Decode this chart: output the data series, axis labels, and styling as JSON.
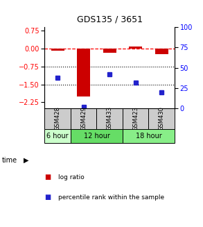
{
  "title": "GDS135 / 3651",
  "samples": [
    "GSM428",
    "GSM429",
    "GSM433",
    "GSM423",
    "GSM430"
  ],
  "log_ratio": [
    -0.07,
    -2.0,
    -0.18,
    0.1,
    -0.22
  ],
  "percentile_rank": [
    38,
    2,
    42,
    32,
    20
  ],
  "ylim_left": [
    -2.5,
    0.9
  ],
  "ylim_right": [
    0,
    100
  ],
  "yticks_left": [
    0.75,
    0,
    -0.75,
    -1.5,
    -2.25
  ],
  "yticks_right": [
    100,
    75,
    50,
    25,
    0
  ],
  "hlines_dashed": [
    0
  ],
  "hlines_dotted": [
    -0.75,
    -1.5
  ],
  "bar_color": "#cc0000",
  "dot_color": "#2222cc",
  "sample_bg": "#cccccc",
  "time_spans": [
    {
      "label": "6 hour",
      "start": 0,
      "end": 1,
      "color": "#ccffcc"
    },
    {
      "label": "12 hour",
      "start": 1,
      "end": 3,
      "color": "#66dd66"
    },
    {
      "label": "18 hour",
      "start": 3,
      "end": 5,
      "color": "#88ee88"
    }
  ],
  "legend_items": [
    "log ratio",
    "percentile rank within the sample"
  ]
}
